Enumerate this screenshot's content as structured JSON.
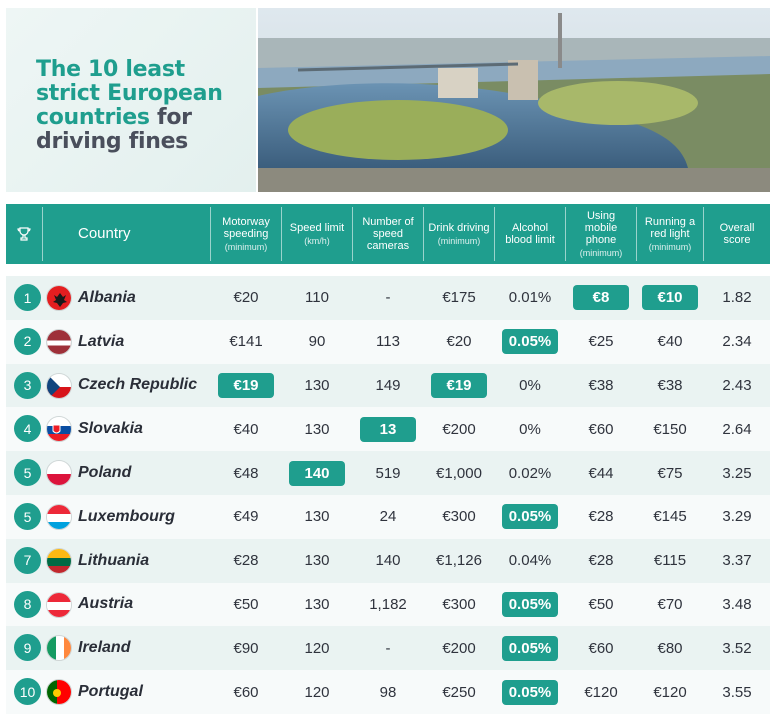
{
  "title": {
    "line1": "The 10 least",
    "line2": "strict European",
    "line3a": "countries",
    "line3b": " for",
    "line4": "driving fines"
  },
  "colors": {
    "accent": "#1f9e8e",
    "text": "#2f333d"
  },
  "header": {
    "trophy_icon": "trophy-icon",
    "country": "Country",
    "columns": [
      {
        "label": "Motorway speeding",
        "sub": "(minimum)"
      },
      {
        "label": "Speed limit",
        "sub": "(km/h)"
      },
      {
        "label": "Number of speed cameras",
        "sub": ""
      },
      {
        "label": "Drink driving",
        "sub": "(minimum)"
      },
      {
        "label": "Alcohol blood limit",
        "sub": ""
      },
      {
        "label": "Using mobile phone",
        "sub": "(minimum)"
      },
      {
        "label": "Running a red light",
        "sub": "(minimum)"
      },
      {
        "label": "Overall score",
        "sub": ""
      }
    ]
  },
  "rows": [
    {
      "rank": "1",
      "country": "Albania",
      "flag": "albania",
      "values": [
        "€20",
        "110",
        "-",
        "€175",
        "0.01%",
        "€8",
        "€10",
        "1.82"
      ],
      "highlight": [
        5,
        6
      ]
    },
    {
      "rank": "2",
      "country": "Latvia",
      "flag": "latvia",
      "values": [
        "€141",
        "90",
        "113",
        "€20",
        "0.05%",
        "€25",
        "€40",
        "2.34"
      ],
      "highlight": [
        4
      ]
    },
    {
      "rank": "3",
      "country": "Czech Republic",
      "flag": "czech",
      "values": [
        "€19",
        "130",
        "149",
        "€19",
        "0%",
        "€38",
        "€38",
        "2.43"
      ],
      "highlight": [
        0,
        3
      ]
    },
    {
      "rank": "4",
      "country": "Slovakia",
      "flag": "slovakia",
      "values": [
        "€40",
        "130",
        "13",
        "€200",
        "0%",
        "€60",
        "€150",
        "2.64"
      ],
      "highlight": [
        2
      ]
    },
    {
      "rank": "5",
      "country": "Poland",
      "flag": "poland",
      "values": [
        "€48",
        "140",
        "519",
        "€1,000",
        "0.02%",
        "€44",
        "€75",
        "3.25"
      ],
      "highlight": [
        1
      ]
    },
    {
      "rank": "5",
      "country": "Luxembourg",
      "flag": "luxembourg",
      "values": [
        "€49",
        "130",
        "24",
        "€300",
        "0.05%",
        "€28",
        "€145",
        "3.29"
      ],
      "highlight": [
        4
      ]
    },
    {
      "rank": "7",
      "country": "Lithuania",
      "flag": "lithuania",
      "values": [
        "€28",
        "130",
        "140",
        "€1,126",
        "0.04%",
        "€28",
        "€115",
        "3.37"
      ],
      "highlight": []
    },
    {
      "rank": "8",
      "country": "Austria",
      "flag": "austria",
      "values": [
        "€50",
        "130",
        "1,182",
        "€300",
        "0.05%",
        "€50",
        "€70",
        "3.48"
      ],
      "highlight": [
        4
      ]
    },
    {
      "rank": "9",
      "country": "Ireland",
      "flag": "ireland",
      "values": [
        "€90",
        "120",
        "-",
        "€200",
        "0.05%",
        "€60",
        "€80",
        "3.52"
      ],
      "highlight": [
        4
      ]
    },
    {
      "rank": "10",
      "country": "Portugal",
      "flag": "portugal",
      "values": [
        "€60",
        "120",
        "98",
        "€250",
        "0.05%",
        "€120",
        "€120",
        "3.55"
      ],
      "highlight": [
        4
      ]
    }
  ]
}
